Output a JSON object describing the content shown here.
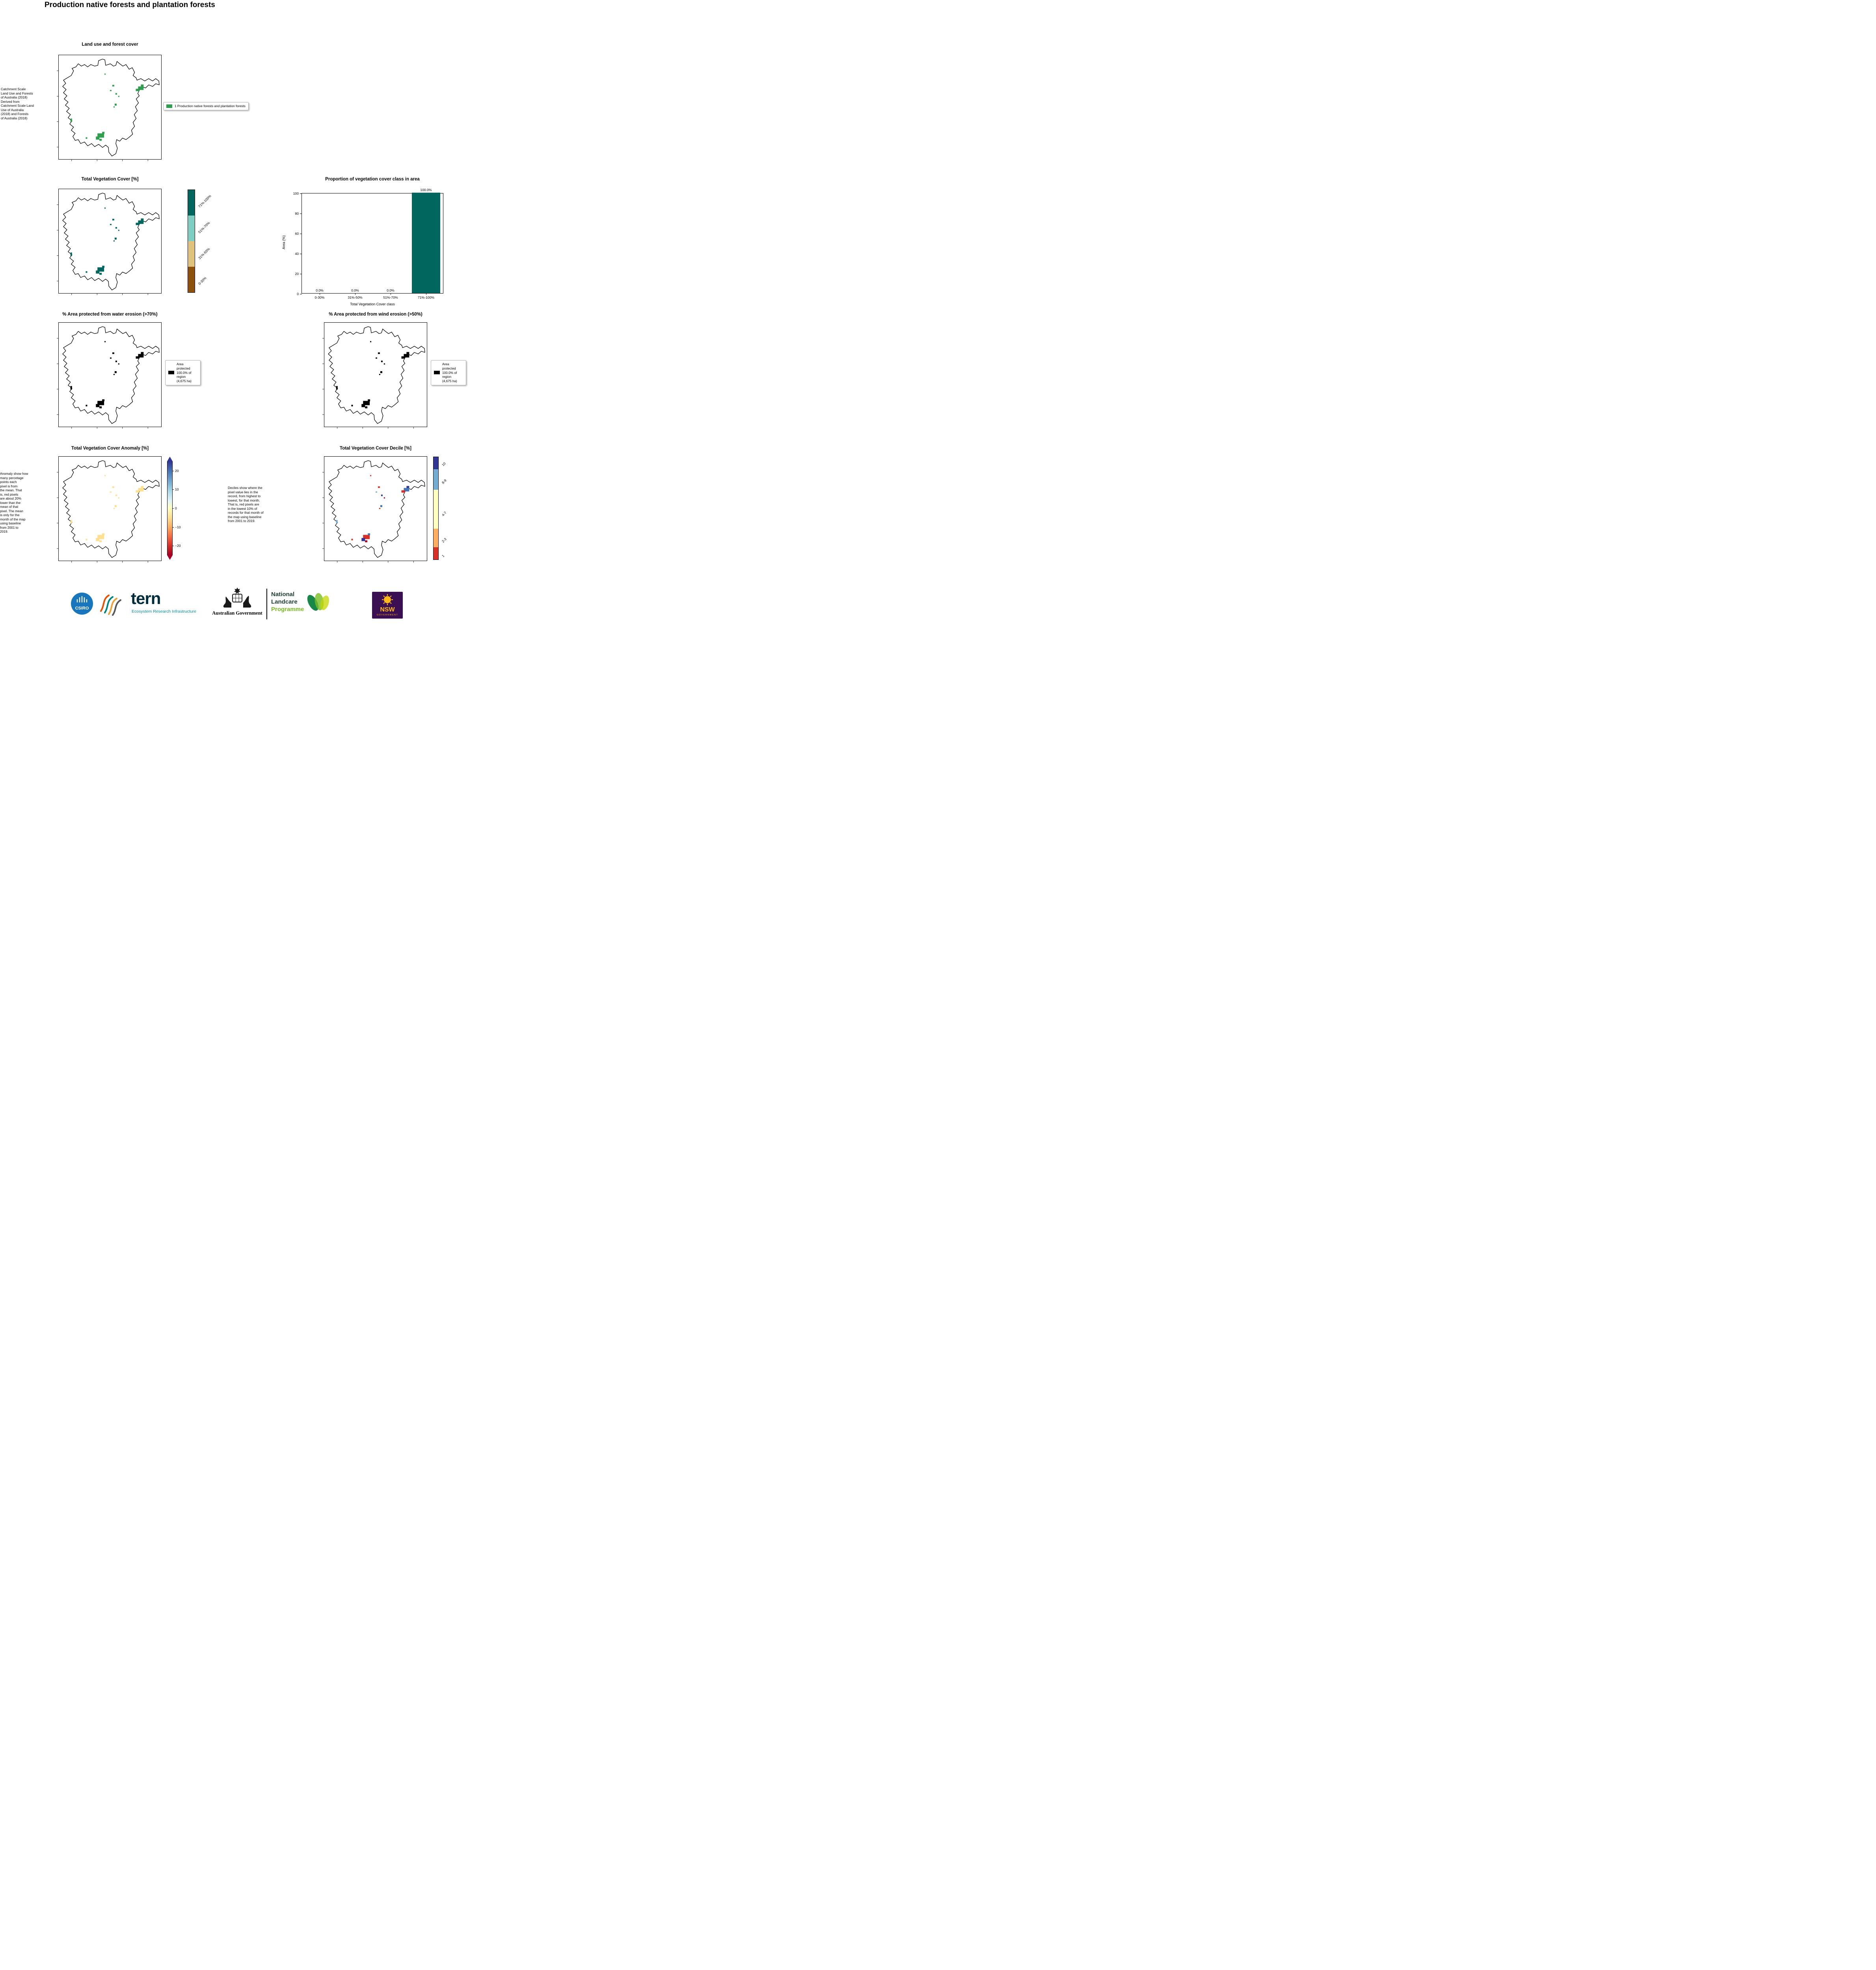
{
  "page": {
    "title": "Production native forests and plantation forests"
  },
  "colors": {
    "land_use_green": "#2f9e4e",
    "veg_teal": "#01665e",
    "black": "#000000",
    "anomaly_yellow": "#fee090",
    "bar_teal": "#01665e"
  },
  "land_use": {
    "title": "Land use and forest cover",
    "caption": " Catchment Scale\nLand Use and Forests\nof Australia (2018)\nDerived from\nCatchment Scale Land\nUse of Australia\n(2018) and Forests\nof Australia (2018)",
    "legend_label": "1 Production native forests and plantation forests"
  },
  "veg_cover": {
    "title": "Total Vegetation Cover [%]",
    "colorbar": [
      {
        "label": "71%-100%",
        "color": "#01665e",
        "frac": 0.25
      },
      {
        "label": "51%-70%",
        "color": "#80cdc1",
        "frac": 0.25
      },
      {
        "label": "31%-50%",
        "color": "#dfc27d",
        "frac": 0.25
      },
      {
        "label": "0-30%",
        "color": "#8c510a",
        "frac": 0.25
      }
    ]
  },
  "chart_data": {
    "type": "bar",
    "title": "Proportion of vegetation cover class in area",
    "categories": [
      "0-30%",
      "31%-50%",
      "51%-70%",
      "71%-100%"
    ],
    "values": [
      0.0,
      0.0,
      0.0,
      100.0
    ],
    "bar_labels": [
      "0.0%",
      "0.0%",
      "0.0%",
      "100.0%"
    ],
    "xlabel": "Total Vegetation Cover class",
    "ylabel": "Area (%)",
    "ylim": [
      0,
      100
    ],
    "yticks": [
      0,
      20,
      40,
      60,
      80,
      100
    ],
    "bar_color": "#01665e",
    "grid": false,
    "legend": "none"
  },
  "water_erosion": {
    "title": "% Area protected from water erosion (>70%)",
    "legend_label": "Area\nprotected\n100.0% of\nregion\n(4,675 ha)"
  },
  "wind_erosion": {
    "title": "% Area protected from wind erosion (>50%)",
    "legend_label": "Area\nprotected\n100.0% of\nregion\n(4,675 ha)"
  },
  "anomaly": {
    "title": "Total Vegetation Cover Anomaly [%]",
    "caption": "Anomaly show how\nmany percetage\npoints each\npixel is from\nthe mean. That\nis, red pixels\nare about 20%\nlower than the\nmean of that\npixel. The mean\nis only for the\nmonth of the map\nusing baseline\nfrom 2001 to\n2019.",
    "colorbar_ticks": [
      "20",
      "10",
      "0",
      "−10",
      "−20"
    ],
    "colorbar_range": [
      25,
      -25
    ]
  },
  "decile": {
    "title": "Total Vegetation Cover Decile [%]",
    "caption": "Deciles show where the\npixel value lies in the\nrecord, from highest to\nlowest, for that month.\nThat is, red pixels are\nin the lowest 10% of\nrecords for that month of\nthe map using baseline\nfrom 2001 to 2019.",
    "colorbar": [
      {
        "label": "10",
        "color": "#313695",
        "frac": 0.12
      },
      {
        "label": "8-9",
        "color": "#74add1",
        "frac": 0.2
      },
      {
        "label": "4-7",
        "color": "#ffffbf",
        "frac": 0.38
      },
      {
        "label": "2-3",
        "color": "#fdae61",
        "frac": 0.18
      },
      {
        "label": "1",
        "color": "#d73027",
        "frac": 0.12
      }
    ]
  },
  "map_patches": [
    [
      203,
      80,
      14,
      9
    ],
    [
      197,
      86,
      9,
      6
    ],
    [
      210,
      75,
      7,
      5
    ],
    [
      137,
      76,
      5,
      4
    ],
    [
      131,
      89,
      4,
      3
    ],
    [
      145,
      97,
      4,
      4
    ],
    [
      152,
      104,
      3,
      3
    ],
    [
      117,
      47,
      3,
      3
    ],
    [
      143,
      124,
      5,
      5
    ],
    [
      140,
      131,
      3,
      3
    ],
    [
      30,
      162,
      4,
      9
    ],
    [
      99,
      200,
      17,
      11
    ],
    [
      95,
      208,
      9,
      8
    ],
    [
      111,
      196,
      6,
      5
    ],
    [
      104,
      214,
      6,
      5
    ],
    [
      69,
      210,
      4,
      4
    ]
  ],
  "decile_patch_colors": [
    "#4575b4",
    "#d73027",
    "#313695",
    "#d73027",
    "#74add1",
    "#313695",
    "#a50026",
    "#d73027",
    "#4575b4",
    "#d73027",
    "#74add1",
    "#d73027",
    "#313695",
    "#4575b4",
    "#a50026",
    "#d73027"
  ],
  "map_render": [
    {
      "id": "map-landuse",
      "patch_color_key": "land_use_green"
    },
    {
      "id": "map-veg",
      "patch_color_key": "veg_teal"
    },
    {
      "id": "map-water",
      "patch_color_key": "black"
    },
    {
      "id": "map-wind",
      "patch_color_key": "black"
    },
    {
      "id": "map-anomaly",
      "patch_color_key": "anomaly_yellow"
    },
    {
      "id": "map-decile",
      "use_decile_colors": true
    }
  ],
  "footer": {
    "csiro_label": "CSIRO",
    "tern_label": "tern",
    "tern_sub": "Ecosystem Research Infrastructure",
    "ausgov_label": "Australian Government",
    "landcare_line1": "National",
    "landcare_line2": "Landcare",
    "landcare_line3": "Programme",
    "nsw_label": "NSW",
    "nsw_sub": "GOVERNMENT"
  }
}
